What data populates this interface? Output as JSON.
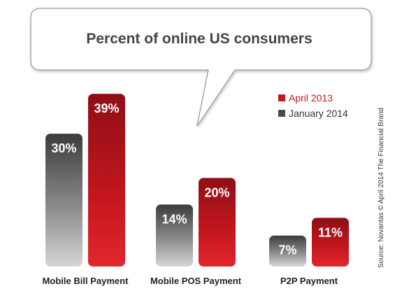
{
  "chart_data": {
    "type": "bar",
    "title": "Percent of online US consumers",
    "categories": [
      "Mobile Bill Payment",
      "Mobile POS Payment",
      "P2P Payment"
    ],
    "series": [
      {
        "name": "January 2014",
        "values": [
          30,
          14,
          7
        ],
        "labels": [
          "30%",
          "14%",
          "7%"
        ],
        "color": "#4a4a4a"
      },
      {
        "name": "April 2013",
        "values": [
          39,
          20,
          11
        ],
        "labels": [
          "39%",
          "20%",
          "11%"
        ],
        "color": "#c8161e"
      }
    ],
    "legend": {
      "position": "top-right",
      "entries": [
        {
          "label": "April 2013",
          "color": "#c8161e"
        },
        {
          "label": "January 2014",
          "color": "#4a4a4a"
        }
      ]
    },
    "ylim": [
      0,
      40
    ],
    "grid": false,
    "source": "Source: Novantas © April 2014 The Financial Brand"
  }
}
